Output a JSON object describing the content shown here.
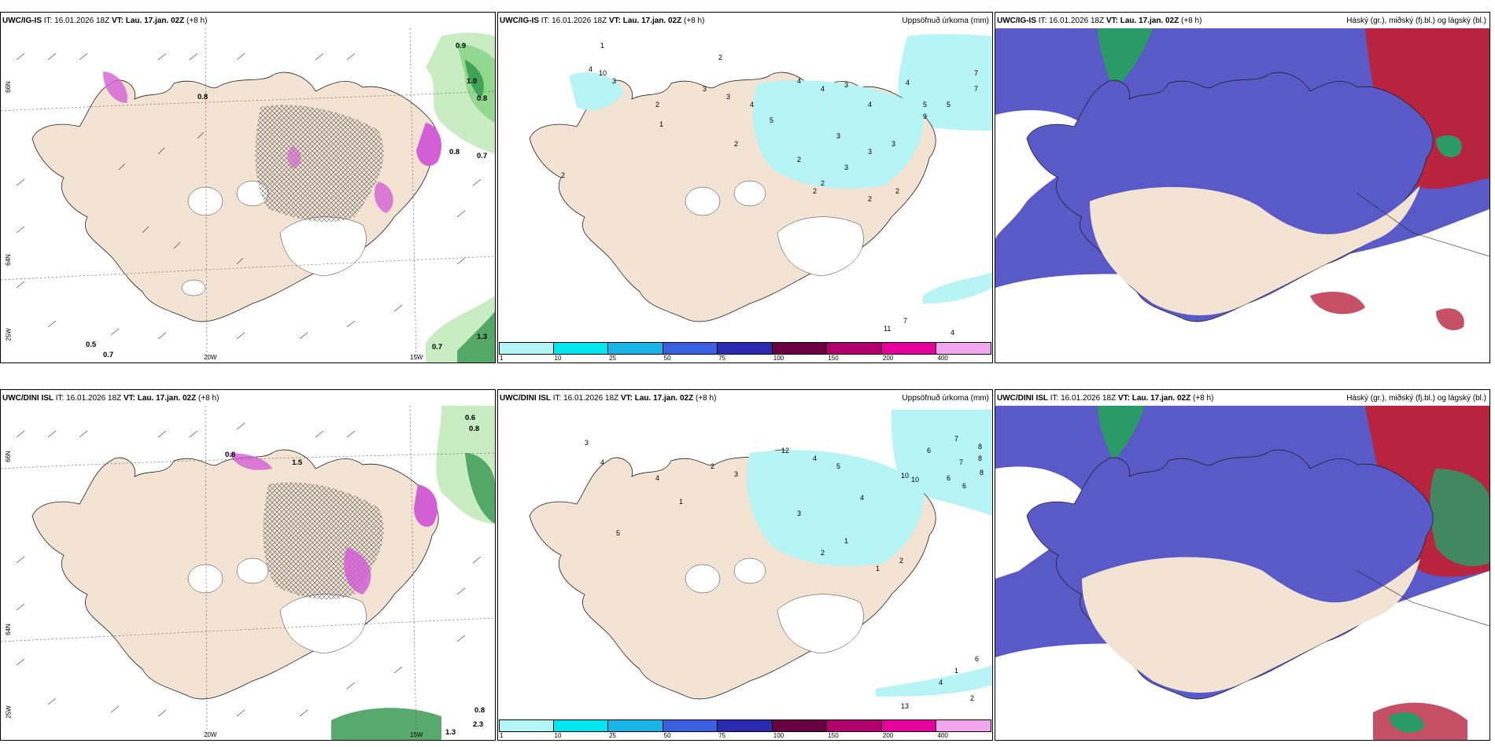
{
  "panels": [
    {
      "header": {
        "model": "UWC/IG-IS",
        "it": "IT: 16.01.2026 18Z",
        "vt_label": "VT:",
        "vt": "Lau. 17.jan. 02Z",
        "lead": "(+8 h)"
      },
      "title_right": ""
    },
    {
      "header": {
        "model": "UWC/IG-IS",
        "it": "IT: 16.01.2026 18Z",
        "vt_label": "VT:",
        "vt": "Lau. 17.jan. 02Z",
        "lead": "(+8 h)"
      },
      "title_right": "Uppsöfnuð úrkoma (mm)"
    },
    {
      "header": {
        "model": "UWC/IG-IS",
        "it": "IT: 16.01.2026 18Z",
        "vt_label": "VT:",
        "vt": "Lau. 17.jan. 02Z",
        "lead": "(+8 h)"
      },
      "title_right": "Háský (gr.), miðský (fj.bl.) og lágský (bl.)"
    },
    {
      "header": {
        "model": "UWC/DINI ISL",
        "it": "IT: 16.01.2026 18Z",
        "vt_label": "VT:",
        "vt": "Lau. 17.jan. 02Z",
        "lead": "(+8 h)"
      },
      "title_right": ""
    },
    {
      "header": {
        "model": "UWC/DINI ISL",
        "it": "IT: 16.01.2026 18Z",
        "vt_label": "VT:",
        "vt": "Lau. 17.jan. 02Z",
        "lead": "(+8 h)"
      },
      "title_right": "Uppsöfnuð úrkoma (mm)"
    },
    {
      "header": {
        "model": "UWC/DINI ISL",
        "it": "IT: 16.01.2026 18Z",
        "vt_label": "VT:",
        "vt": "Lau. 17.jan. 02Z",
        "lead": "(+8 h)"
      },
      "title_right": "Háský (gr.), miðský (fj.bl.) og lágský (bl.)"
    }
  ],
  "axis_labels": {
    "lon_20": "20W",
    "lon_15": "15W",
    "lat_66": "66N",
    "lat_64": "64N",
    "lon_25": "25W"
  },
  "precip_colorbar": {
    "levels": [
      "1",
      "10",
      "25",
      "50",
      "75",
      "100",
      "150",
      "200",
      "400"
    ],
    "colors": [
      "#b3f5f7",
      "#00e5ee",
      "#19b5e6",
      "#3860e0",
      "#2a2ab0",
      "#6a0040",
      "#b0006e",
      "#e8009e",
      "#f2a6ee"
    ]
  },
  "wind_labels_top": [
    "0.9",
    "1.0",
    "0.8",
    "0.8",
    "0.7",
    "0.5",
    "0.7",
    "1.3",
    "0.8",
    "0.7"
  ],
  "wind_labels_bottom": [
    "0.6",
    "0.8",
    "0.8",
    "1.5",
    "0.8",
    "1.3",
    "2.3"
  ],
  "precip_numbers_top": [
    "1",
    "2",
    "4",
    "10",
    "3",
    "2",
    "1",
    "3",
    "3",
    "4",
    "5",
    "4",
    "4",
    "3",
    "7",
    "5",
    "4",
    "3",
    "2",
    "2",
    "3",
    "3",
    "3",
    "2",
    "2",
    "2",
    "2",
    "4",
    "9",
    "5",
    "7",
    "11",
    "7",
    "4",
    "2"
  ],
  "precip_numbers_bottom": [
    "3",
    "4",
    "5",
    "4",
    "1",
    "2",
    "3",
    "10",
    "12",
    "4",
    "5",
    "3",
    "4",
    "2",
    "1",
    "6",
    "7",
    "8",
    "8",
    "8",
    "10",
    "7",
    "6",
    "6",
    "2",
    "1",
    "13",
    "4",
    "6",
    "2",
    "1"
  ],
  "colors": {
    "land": "#f2e3d3",
    "ocean": "#ffffff",
    "snow_cyan": "#b6f4f5",
    "cloud_high": "#b8243e",
    "cloud_mid": "#5a59c8",
    "cloud_low": "#2d62d8",
    "cloud_green": "#2a9a66",
    "green_pale": "#c9ecc3",
    "green_mid": "#93d88f",
    "green_dark": "#1f8c3c",
    "magenta": "#d35fd6"
  }
}
